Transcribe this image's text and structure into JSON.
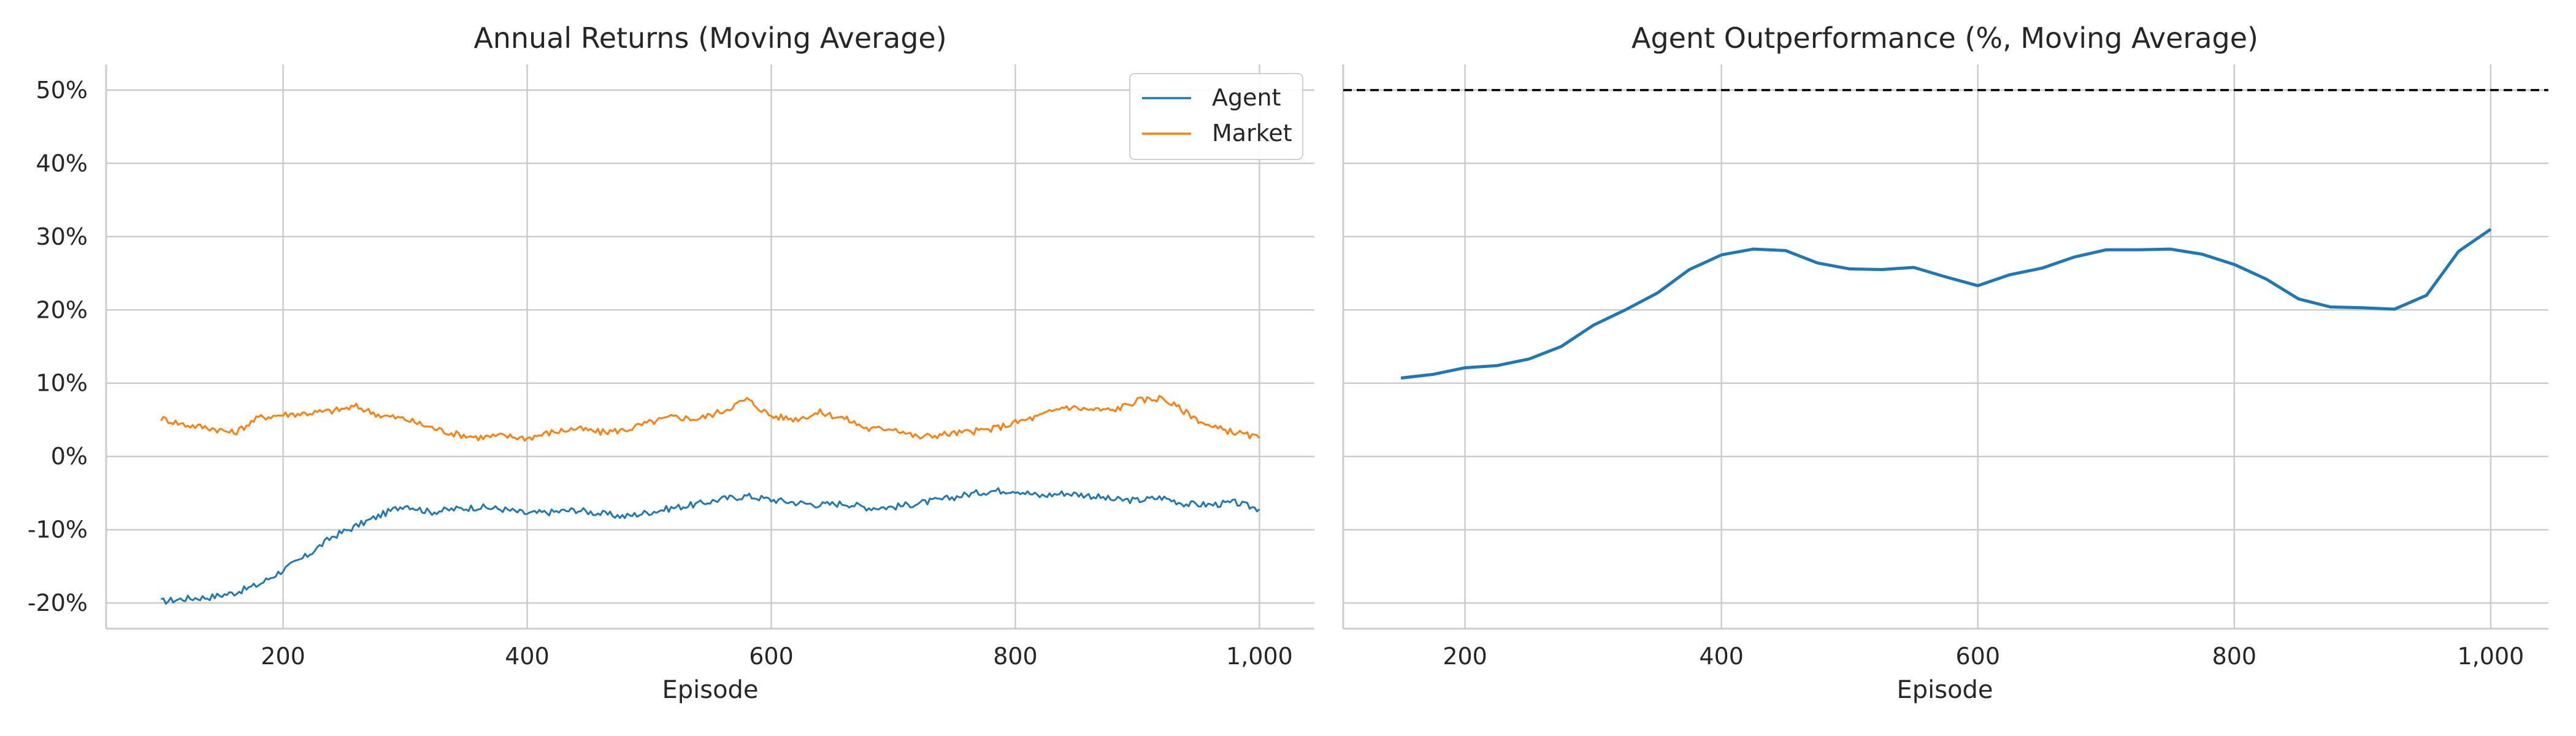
{
  "chart_data": [
    {
      "type": "line",
      "title": "Annual Returns (Moving Average)",
      "xlabel": "Episode",
      "ylabel": "",
      "xlim": [
        55,
        1045
      ],
      "ylim": [
        -23.5,
        53.5
      ],
      "xticks": [
        200,
        400,
        600,
        800,
        1000
      ],
      "xtick_labels": [
        "200",
        "400",
        "600",
        "800",
        "1,000"
      ],
      "yticks": [
        -20,
        -10,
        0,
        10,
        20,
        30,
        40,
        50
      ],
      "ytick_labels": [
        "-20%",
        "-10%",
        "0%",
        "10%",
        "20%",
        "30%",
        "40%",
        "50%"
      ],
      "grid": true,
      "legend": "top-right",
      "series": [
        {
          "name": "Agent",
          "color": "#1f77b4",
          "x": [
            100,
            120,
            140,
            160,
            180,
            200,
            220,
            240,
            260,
            280,
            300,
            320,
            340,
            360,
            380,
            400,
            420,
            440,
            460,
            480,
            500,
            520,
            540,
            560,
            580,
            600,
            620,
            640,
            660,
            680,
            700,
            720,
            740,
            760,
            780,
            800,
            820,
            840,
            860,
            880,
            900,
            920,
            940,
            960,
            980,
            1000
          ],
          "y": [
            -19.8,
            -19.4,
            -19.2,
            -18.6,
            -17.5,
            -15.5,
            -13.5,
            -11,
            -9.5,
            -8,
            -6.6,
            -7.6,
            -7.2,
            -6.9,
            -7.2,
            -7.8,
            -7.6,
            -7.3,
            -7.8,
            -8.2,
            -7.6,
            -7,
            -6.5,
            -5.8,
            -5.4,
            -5.9,
            -6.3,
            -6.6,
            -6.4,
            -7,
            -6.9,
            -6.4,
            -5.9,
            -5.2,
            -4.7,
            -4.6,
            -5.4,
            -5,
            -5.3,
            -5.9,
            -6,
            -5.6,
            -6.5,
            -6.6,
            -6.3,
            -7.2
          ]
        },
        {
          "name": "Market",
          "color": "#ff7f0e",
          "x": [
            100,
            120,
            140,
            160,
            180,
            200,
            220,
            240,
            260,
            280,
            300,
            320,
            340,
            360,
            380,
            400,
            420,
            440,
            460,
            480,
            500,
            520,
            540,
            560,
            580,
            600,
            620,
            640,
            660,
            680,
            700,
            720,
            740,
            760,
            780,
            800,
            820,
            840,
            860,
            880,
            900,
            920,
            940,
            960,
            980,
            1000
          ],
          "y": [
            5.2,
            4.3,
            3.9,
            3.2,
            5.3,
            5.7,
            5.9,
            6.2,
            6.8,
            5.6,
            5.1,
            4,
            3.1,
            2.6,
            2.8,
            2.5,
            3.3,
            3.8,
            3.3,
            3.6,
            4.6,
            5.4,
            5.1,
            6.2,
            7.8,
            5.5,
            5.1,
            6,
            5.2,
            3.7,
            3.9,
            2.6,
            3,
            3.3,
            3.7,
            4.6,
            5.5,
            6.8,
            6.4,
            6.3,
            7.6,
            8,
            6,
            4,
            3.3,
            2.5
          ]
        }
      ]
    },
    {
      "type": "line",
      "title": "Agent Outperformance (%, Moving Average)",
      "xlabel": "Episode",
      "ylabel": "",
      "xlim": [
        105,
        1045
      ],
      "ylim": [
        -23.5,
        53.5
      ],
      "xticks": [
        200,
        400,
        600,
        800,
        1000
      ],
      "xtick_labels": [
        "200",
        "400",
        "600",
        "800",
        "1,000"
      ],
      "grid": true,
      "reference_line": {
        "y": 50,
        "style": "dashed",
        "color": "#000000"
      },
      "series": [
        {
          "color": "#1f77b4",
          "x": [
            150,
            175,
            200,
            225,
            250,
            275,
            300,
            325,
            350,
            375,
            400,
            425,
            450,
            475,
            500,
            525,
            550,
            575,
            600,
            625,
            650,
            675,
            700,
            725,
            750,
            775,
            800,
            825,
            850,
            875,
            900,
            925,
            950,
            975,
            1000
          ],
          "y": [
            10.7,
            11.2,
            12.1,
            12.4,
            13.3,
            15,
            17.9,
            20,
            22.3,
            25.5,
            27.5,
            28.3,
            28.1,
            26.4,
            25.6,
            25.5,
            25.8,
            24.5,
            23.3,
            24.8,
            25.7,
            27.2,
            28.2,
            28.2,
            28.3,
            27.6,
            26.2,
            24.2,
            21.5,
            20.4,
            20.3,
            20.1,
            22,
            28,
            31
          ]
        }
      ]
    }
  ]
}
